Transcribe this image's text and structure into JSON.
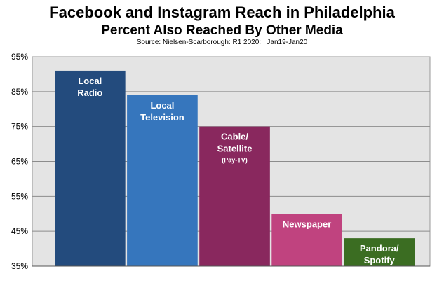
{
  "chart_data": {
    "type": "bar",
    "title": "Facebook and Instagram Reach in Philadelphia",
    "subtitle": "Percent Also Reached By Other Media",
    "source": "Source: Nielsen-Scarborough: R1 2020:   Jan19-Jan20",
    "xlabel": "",
    "ylabel": "",
    "ylim": [
      35,
      95
    ],
    "yticks": [
      "35%",
      "45%",
      "55%",
      "65%",
      "75%",
      "85%",
      "95%"
    ],
    "grid": true,
    "categories": [
      "Local Radio",
      "Local Television",
      "Cable/ Satellite (Pay-TV)",
      "Newspaper",
      "Pandora/ Spotify"
    ],
    "bars": [
      {
        "label_lines": [
          "Local",
          "Radio"
        ],
        "sublabel": "",
        "value": 91,
        "color": "#234b7d"
      },
      {
        "label_lines": [
          "Local",
          "Television"
        ],
        "sublabel": "",
        "value": 84,
        "color": "#3676bd"
      },
      {
        "label_lines": [
          "Cable/",
          "Satellite"
        ],
        "sublabel": "(Pay-TV)",
        "value": 75,
        "color": "#89285e"
      },
      {
        "label_lines": [
          "Newspaper"
        ],
        "sublabel": "",
        "value": 50,
        "color": "#c0437f"
      },
      {
        "label_lines": [
          "Pandora/",
          "Spotify"
        ],
        "sublabel": "",
        "value": 43,
        "color": "#3b6d22"
      }
    ]
  }
}
